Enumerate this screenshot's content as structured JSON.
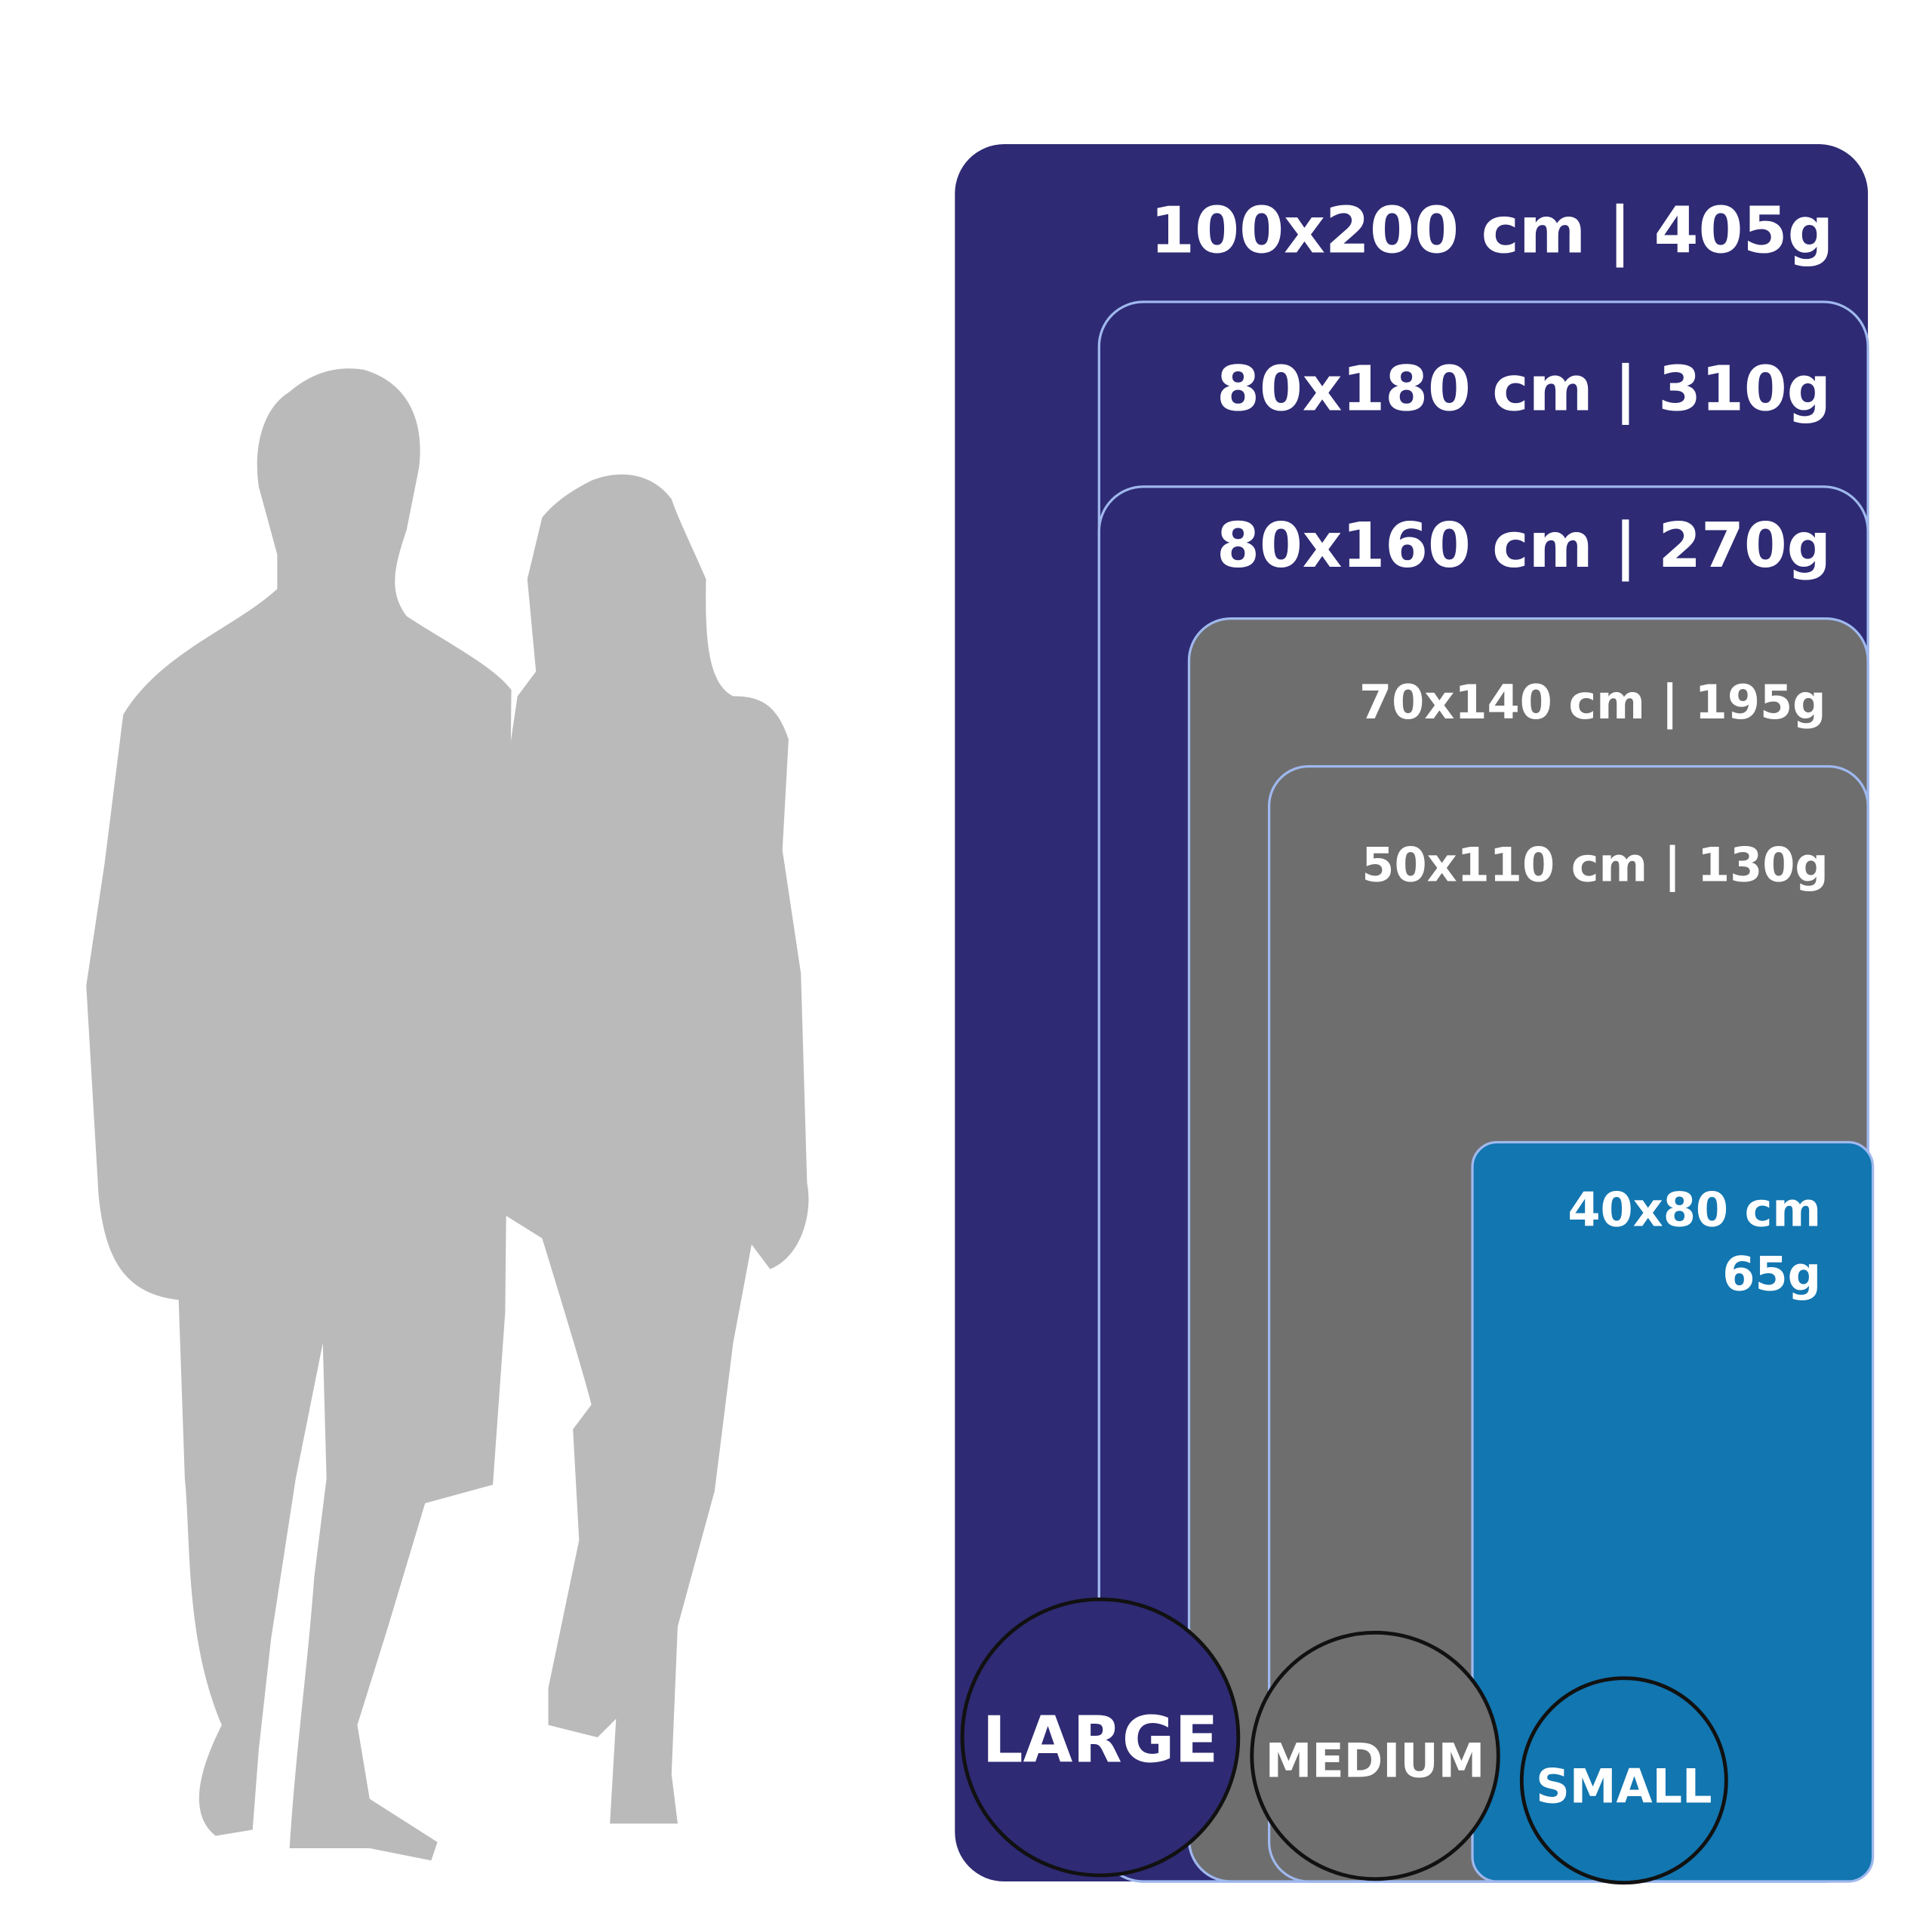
{
  "panels": [
    {
      "label": "100x200 cm | 405g"
    },
    {
      "label": "80x180 cm | 310g"
    },
    {
      "label": "80x160 cm | 270g"
    },
    {
      "label": "70x140 cm | 195g"
    },
    {
      "label": "50x110 cm | 130g"
    }
  ],
  "small_panel": {
    "lines": [
      "40x80 cm",
      "65g"
    ]
  },
  "badges": [
    "LARGE",
    "MEDIUM",
    "SMALL"
  ]
}
